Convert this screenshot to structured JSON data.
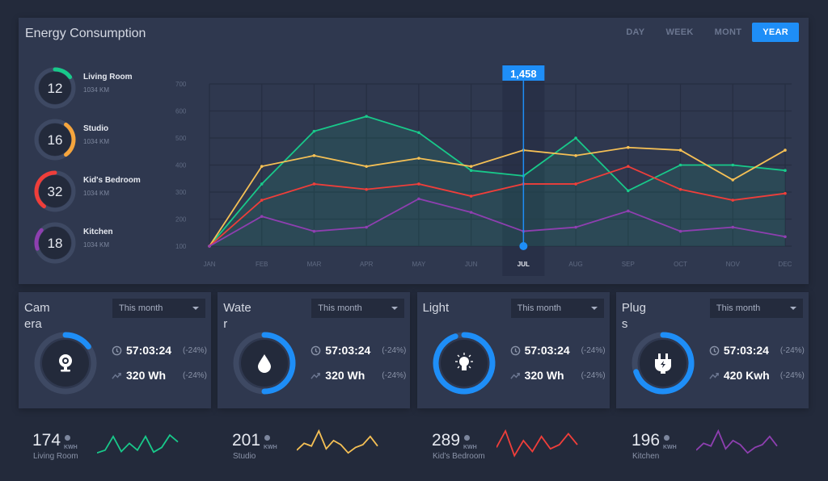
{
  "header": {
    "title": "Energy Consumption",
    "tabs": [
      {
        "label": "DAY"
      },
      {
        "label": "WEEK"
      },
      {
        "label": "MONT"
      },
      {
        "label": "YEAR",
        "active": true
      }
    ]
  },
  "rooms": [
    {
      "value": "12",
      "name": "Living Room",
      "sub": "1034 KM",
      "color": "#18c98a",
      "fraction": 0.15
    },
    {
      "value": "16",
      "name": "Studio",
      "sub": "1034 KM",
      "color": "#f5a53d",
      "fraction": 0.3
    },
    {
      "value": "32",
      "name": "Kid's Bedroom",
      "sub": "1034 KM",
      "color": "#ef3e3a",
      "fraction": 0.4
    },
    {
      "value": "18",
      "name": "Kitchen",
      "sub": "1034 KM",
      "color": "#8e3fb0",
      "fraction": 0.17
    }
  ],
  "chart_data": {
    "type": "line",
    "categories": [
      "JAN",
      "FEB",
      "MAR",
      "APR",
      "MAY",
      "JUN",
      "JUL",
      "AUG",
      "SEP",
      "OCT",
      "NOV",
      "DEC"
    ],
    "ylim": [
      100,
      700
    ],
    "yticks": [
      "100",
      "200",
      "300",
      "400",
      "500",
      "600",
      "700"
    ],
    "grid": true,
    "highlight": {
      "category": "JUL",
      "label": "1,458",
      "color": "#1e8ef7"
    },
    "series": [
      {
        "color": "#18c98a",
        "fill": true,
        "values": [
          100,
          330,
          525,
          580,
          520,
          380,
          360,
          500,
          305,
          400,
          400,
          380
        ]
      },
      {
        "color": "#f5c055",
        "values": [
          100,
          395,
          435,
          395,
          425,
          395,
          455,
          435,
          465,
          455,
          345,
          455
        ]
      },
      {
        "color": "#ef3e3a",
        "values": [
          100,
          270,
          330,
          310,
          330,
          285,
          330,
          330,
          395,
          310,
          270,
          295
        ]
      },
      {
        "color": "#8e3fb0",
        "values": [
          100,
          210,
          155,
          170,
          275,
          225,
          155,
          170,
          230,
          155,
          170,
          135
        ]
      }
    ]
  },
  "cards": [
    {
      "title": "Camera",
      "icon": "webcam-icon",
      "select": "This month",
      "time": "57:03:24",
      "time_pct": "(-24%)",
      "energy": "320 Wh",
      "energy_pct": "(-24%)",
      "progress": 0.15
    },
    {
      "title": "Water",
      "icon": "water-drop-icon",
      "select": "This month",
      "time": "57:03:24",
      "time_pct": "(-24%)",
      "energy": "320 Wh",
      "energy_pct": "(-24%)",
      "progress": 0.5
    },
    {
      "title": "Light",
      "icon": "light-bulb-icon",
      "select": "This month",
      "time": "57:03:24",
      "time_pct": "(-24%)",
      "energy": "320 Wh",
      "energy_pct": "(-24%)",
      "progress": 0.95
    },
    {
      "title": "Plugs",
      "icon": "plug-icon",
      "select": "This month",
      "time": "57:03:24",
      "time_pct": "(-24%)",
      "energy": "420 Kwh",
      "energy_pct": "(-24%)",
      "progress": 0.7
    }
  ],
  "accent": "#1e8ef7",
  "sparklines": [
    {
      "value": "174",
      "unit": "KWH",
      "label": "Living Room",
      "color": "#18c98a",
      "values": [
        2,
        3,
        8,
        2.5,
        5.5,
        3,
        8,
        2.3,
        4,
        8.5,
        6
      ]
    },
    {
      "value": "201",
      "unit": "KWH",
      "label": "Studio",
      "color": "#f5c055",
      "values": [
        3,
        5.5,
        4.5,
        10,
        3.5,
        6.5,
        5,
        2,
        4,
        5,
        8,
        4.5
      ]
    },
    {
      "value": "289",
      "unit": "KWH",
      "label": "Kid's Bedroom",
      "color": "#ef3e3a",
      "values": [
        4,
        10,
        1,
        6.5,
        2.5,
        8,
        3.5,
        5,
        9,
        5
      ]
    },
    {
      "value": "196",
      "unit": "KWH",
      "label": "Kitchen",
      "color": "#8e3fb0",
      "values": [
        3,
        5.5,
        4.5,
        10,
        3.5,
        6.5,
        5,
        2,
        4,
        5,
        8,
        4.5
      ]
    }
  ]
}
